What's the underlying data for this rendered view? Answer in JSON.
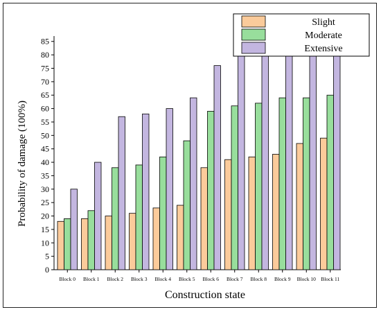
{
  "chart_data": {
    "type": "bar",
    "xlabel": "Construction state",
    "ylabel": "Probability of damage (100%)",
    "ylim": [
      0,
      87
    ],
    "yticks": [
      0,
      5,
      10,
      15,
      20,
      25,
      30,
      35,
      40,
      45,
      50,
      55,
      60,
      65,
      70,
      75,
      80,
      85
    ],
    "grid": false,
    "legend_position": "top-right",
    "categories": [
      "Block 0",
      "Block 1",
      "Block 2",
      "Block 3",
      "Block 4",
      "Block 5",
      "Block 6",
      "Block 7",
      "Block 8",
      "Block 9",
      "Block 10",
      "Block 11"
    ],
    "series": [
      {
        "name": "Slight",
        "color": "#FBCB9B",
        "values": [
          18,
          19,
          20,
          21,
          23,
          24,
          38,
          41,
          42,
          43,
          47,
          49
        ]
      },
      {
        "name": "Moderate",
        "color": "#98DE9C",
        "values": [
          19,
          22,
          38,
          39,
          42,
          48,
          59,
          61,
          62,
          64,
          64,
          65
        ]
      },
      {
        "name": "Extensive",
        "color": "#C3B6E0",
        "values": [
          30,
          40,
          57,
          58,
          60,
          64,
          76,
          80,
          80,
          80,
          80,
          80
        ]
      }
    ]
  }
}
